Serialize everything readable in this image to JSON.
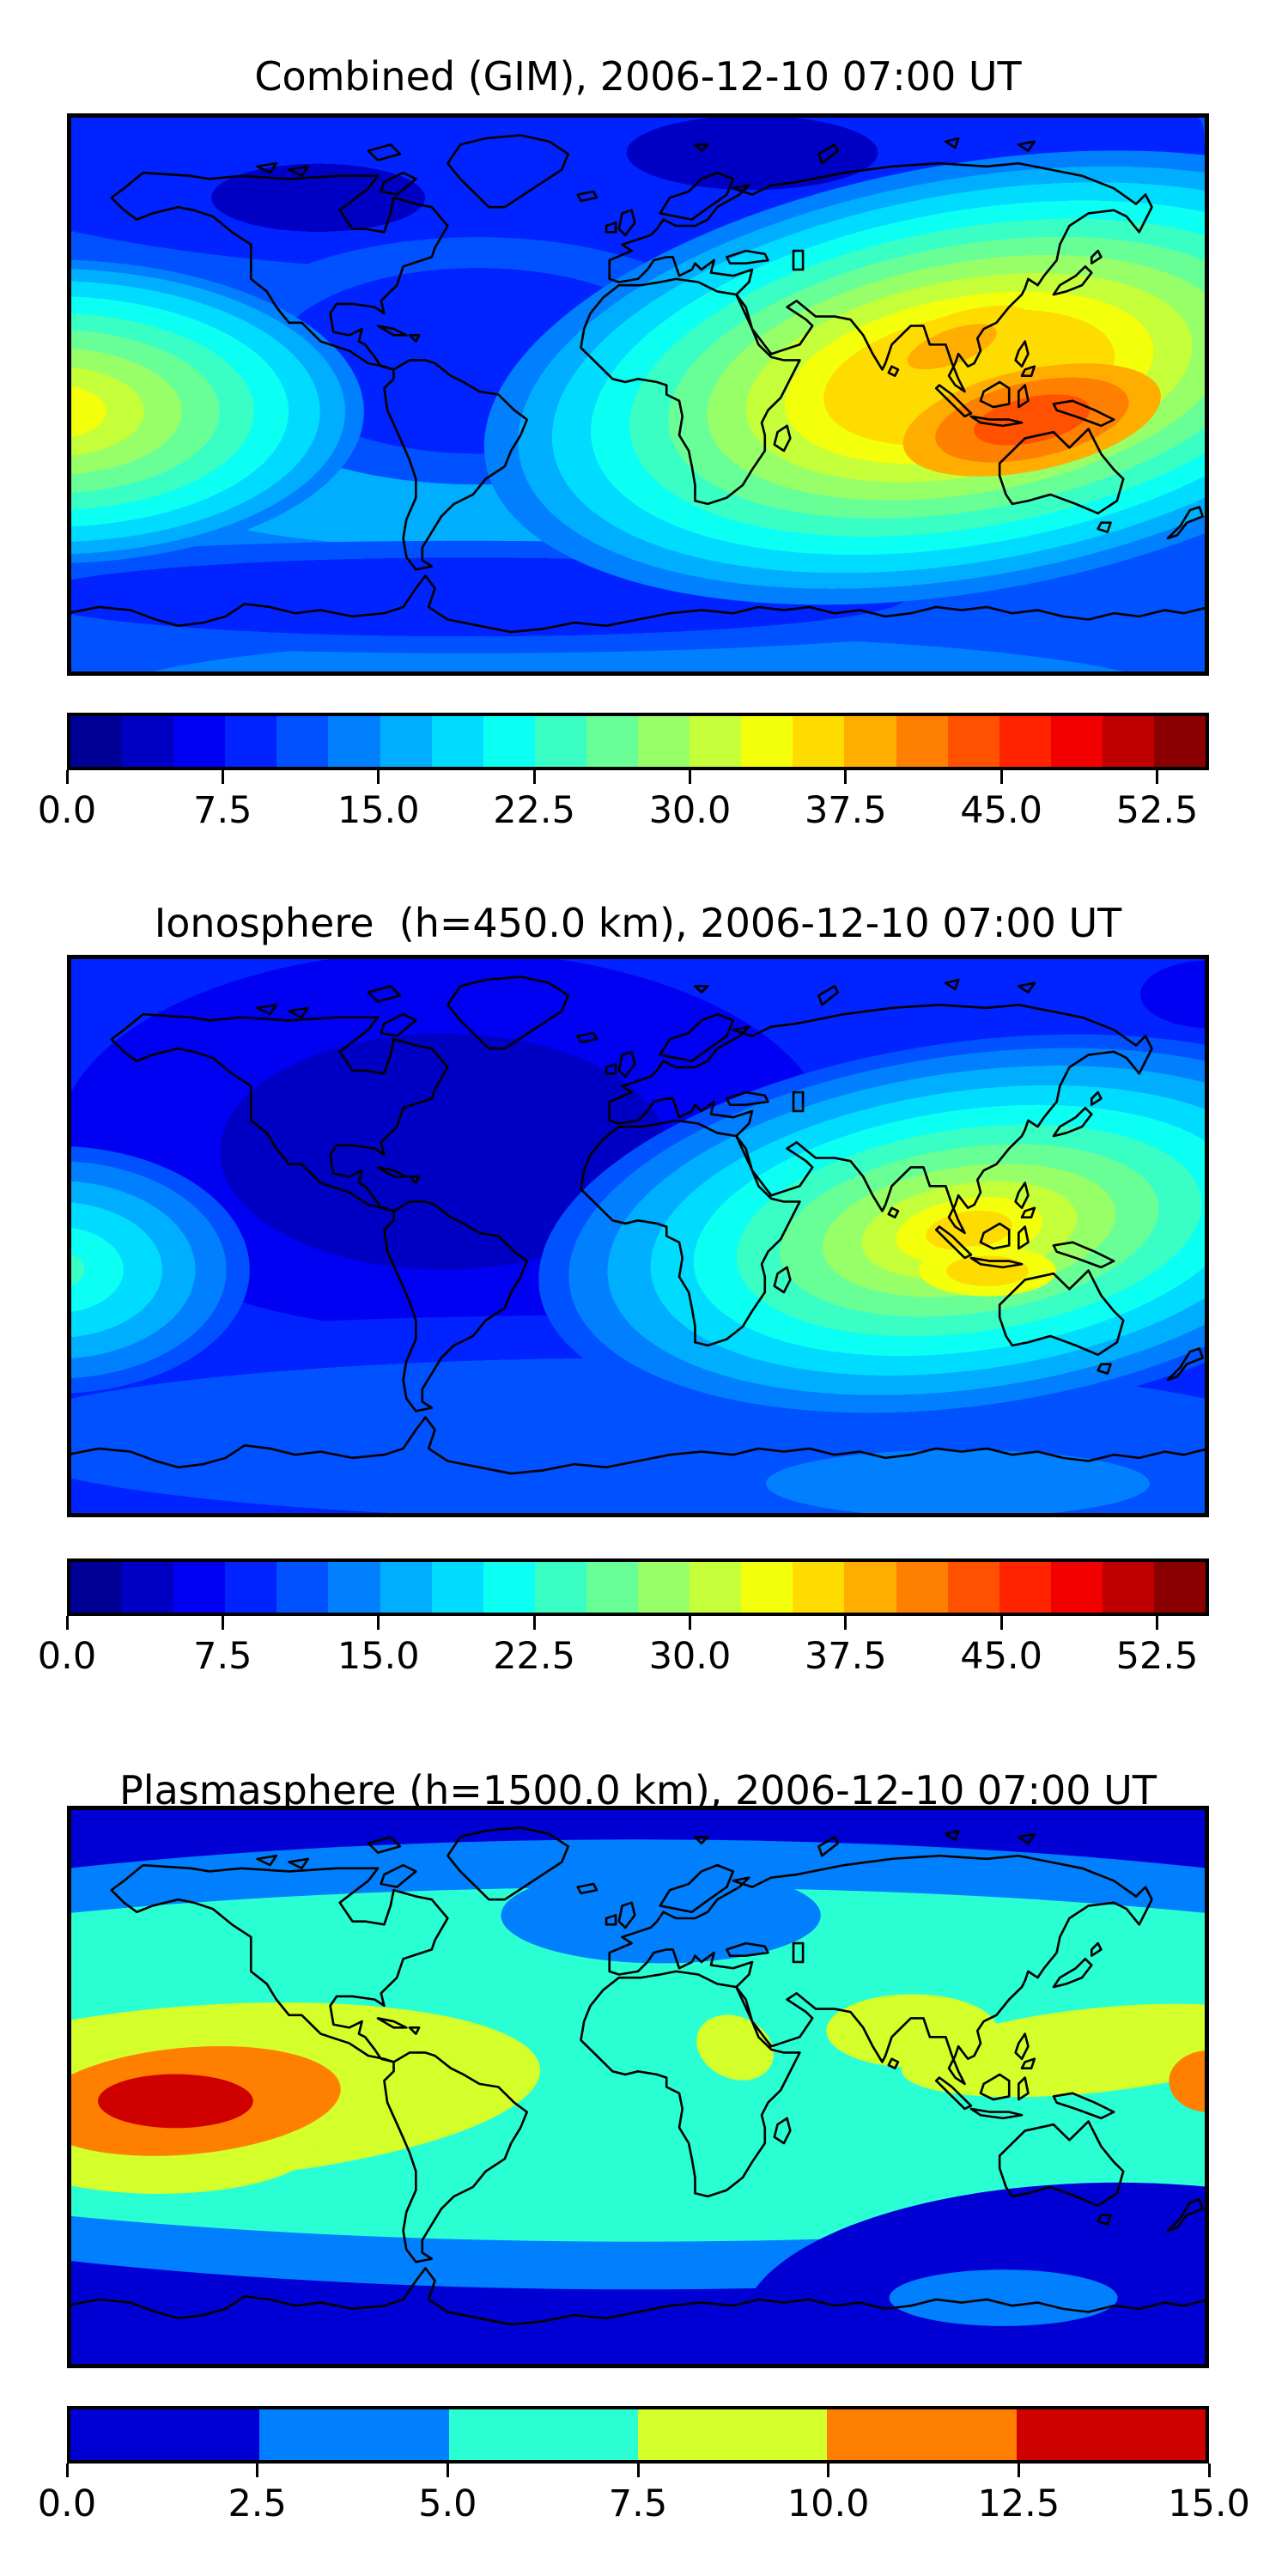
{
  "figure": {
    "background": "#ffffff",
    "description": "Three stacked global TEC contour maps (matplotlib-style) with discrete jet colorbars"
  },
  "chart_data": [
    {
      "type": "heatmap",
      "title": "Combined (GIM), 2006-12-10 07:00 UT",
      "projection": "equirectangular",
      "lon_range": [
        -180,
        180
      ],
      "lat_range": [
        -90,
        90
      ],
      "colormap": "jet-discrete",
      "vmin": 0,
      "vmax": 55,
      "level_step": 2.5,
      "colorbar": {
        "tick_labels": [
          "0.0",
          "7.5",
          "15.0",
          "22.5",
          "30.0",
          "37.5",
          "45.0",
          "52.5"
        ],
        "tick_values": [
          0,
          7.5,
          15,
          22.5,
          30,
          37.5,
          45,
          52.5
        ],
        "colors": [
          "#000096",
          "#0000C4",
          "#0000F3",
          "#0023FF",
          "#0051FF",
          "#0080FF",
          "#00AEFF",
          "#00DCFF",
          "#0BFFF3",
          "#3AFFC5",
          "#68FF97",
          "#97FF68",
          "#C5FF3A",
          "#F3FF0B",
          "#FFDC00",
          "#FFAE00",
          "#FF8000",
          "#FF5100",
          "#FF2300",
          "#F20000",
          "#BE0000",
          "#8A0000"
        ]
      },
      "features": [
        {
          "name": "equatorial-anomaly-peak",
          "lon": 122,
          "lat": -7,
          "approx_value": 45
        },
        {
          "name": "secondary-peak-near-dateline",
          "lon": -176,
          "lat": -5,
          "approx_value": 32.5
        },
        {
          "name": "north-polar-minimum",
          "lon": -100,
          "lat": 62,
          "approx_value": 2.5
        },
        {
          "name": "siberia-minimum",
          "lon": 36,
          "lat": 66,
          "approx_value": 2.5
        }
      ],
      "base": "#0051FF",
      "layers": [
        {
          "cx": 0.33,
          "cy": 0.68,
          "rx": 0.52,
          "ry": 0.2,
          "bands": [
            [
              0,
              0.45,
              "#00AEFF"
            ],
            [
              0.45,
              0.8,
              "#0080FF"
            ],
            [
              0.8,
              1,
              "#0051FF"
            ]
          ]
        },
        {
          "cx": 0.5,
          "cy": 1.05,
          "rx": 0.88,
          "ry": 0.22,
          "bands": [
            [
              0,
              0.55,
              "#0080FF"
            ],
            [
              0.55,
              1,
              "#0051FF"
            ]
          ]
        },
        {
          "cx": 0.35,
          "cy": 0.86,
          "rx": 0.55,
          "ry": 0.1,
          "bands": [
            [
              0,
              0.7,
              "#0023FF"
            ],
            [
              0.7,
              1,
              "#0051FF"
            ]
          ]
        },
        {
          "cx": 0.42,
          "cy": 0.04,
          "rx": 0.8,
          "ry": 0.34,
          "bands": [
            [
              0,
              0.72,
              "#0023FF"
            ],
            [
              0.72,
              1,
              "#0051FF"
            ]
          ]
        },
        {
          "cx": 0.22,
          "cy": 0.15,
          "rx": 0.17,
          "ry": 0.11,
          "bands": [
            [
              0,
              0.55,
              "#0000C4"
            ],
            [
              0.55,
              1,
              "#0023FF"
            ]
          ]
        },
        {
          "cx": 0.6,
          "cy": 0.07,
          "rx": 0.2,
          "ry": 0.12,
          "bands": [
            [
              0,
              0.55,
              "#0000C4"
            ],
            [
              0.55,
              1,
              "#0023FF"
            ]
          ]
        },
        {
          "cx": 0.985,
          "cy": 0.12,
          "rx": 0.06,
          "ry": 0.07,
          "bands": [
            [
              0,
              0.6,
              "#0000C4"
            ],
            [
              0.6,
              1,
              "#0023FF"
            ]
          ]
        },
        {
          "cx": 0.36,
          "cy": 0.44,
          "rx": 0.24,
          "ry": 0.22,
          "bands": [
            [
              0,
              0.75,
              "#0023FF"
            ],
            [
              0.75,
              1,
              "#0051FF"
            ]
          ]
        },
        {
          "cx": 0.79,
          "cy": 0.47,
          "rx": 0.43,
          "ry": 0.38,
          "rot": -10,
          "bands": [
            [
              0,
              0.3,
              "#FFDC00"
            ],
            [
              0.3,
              0.38,
              "#F3FF0B"
            ],
            [
              0.38,
              0.46,
              "#C5FF3A"
            ],
            [
              0.46,
              0.54,
              "#97FF68"
            ],
            [
              0.54,
              0.62,
              "#68FF97"
            ],
            [
              0.62,
              0.7,
              "#3AFFC5"
            ],
            [
              0.7,
              0.78,
              "#0BFFF3"
            ],
            [
              0.78,
              0.86,
              "#00DCFF"
            ],
            [
              0.86,
              0.93,
              "#00AEFF"
            ],
            [
              0.93,
              1,
              "#0080FF"
            ]
          ]
        },
        {
          "cx": 0.845,
          "cy": 0.545,
          "rx": 0.115,
          "ry": 0.09,
          "rot": -12,
          "bands": [
            [
              0,
              0.45,
              "#FF5100"
            ],
            [
              0.45,
              0.75,
              "#FF8000"
            ],
            [
              0.75,
              1,
              "#FFAE00"
            ]
          ]
        },
        {
          "cx": 0.775,
          "cy": 0.415,
          "rx": 0.075,
          "ry": 0.055,
          "rot": -20,
          "bands": [
            [
              0,
              0.55,
              "#FFAE00"
            ],
            [
              0.55,
              1,
              "#FFDC00"
            ]
          ]
        },
        {
          "cx": -0.015,
          "cy": 0.53,
          "rx": 0.275,
          "ry": 0.27,
          "bands": [
            [
              0,
              0.18,
              "#F3FF0B"
            ],
            [
              0.18,
              0.3,
              "#C5FF3A"
            ],
            [
              0.3,
              0.42,
              "#97FF68"
            ],
            [
              0.42,
              0.54,
              "#68FF97"
            ],
            [
              0.54,
              0.65,
              "#3AFFC5"
            ],
            [
              0.65,
              0.76,
              "#0BFFF3"
            ],
            [
              0.76,
              0.86,
              "#00DCFF"
            ],
            [
              0.86,
              0.94,
              "#00AEFF"
            ],
            [
              0.94,
              1,
              "#0080FF"
            ]
          ]
        }
      ]
    },
    {
      "type": "heatmap",
      "title": "Ionosphere  (h=450.0 km), 2006-12-10 07:00 UT",
      "projection": "equirectangular",
      "lon_range": [
        -180,
        180
      ],
      "lat_range": [
        -90,
        90
      ],
      "colormap": "jet-discrete",
      "vmin": 0,
      "vmax": 55,
      "level_step": 2.5,
      "colorbar": {
        "tick_labels": [
          "0.0",
          "7.5",
          "15.0",
          "22.5",
          "30.0",
          "37.5",
          "45.0",
          "52.5"
        ],
        "tick_values": [
          0,
          7.5,
          15,
          22.5,
          30,
          37.5,
          45,
          52.5
        ],
        "colors": [
          "#000096",
          "#0000C4",
          "#0000F3",
          "#0023FF",
          "#0051FF",
          "#0080FF",
          "#00AEFF",
          "#00DCFF",
          "#0BFFF3",
          "#3AFFC5",
          "#68FF97",
          "#97FF68",
          "#C5FF3A",
          "#F3FF0B",
          "#FFDC00",
          "#FFAE00",
          "#FF8000",
          "#FF5100",
          "#FF2300",
          "#F20000",
          "#BE0000",
          "#8A0000"
        ]
      },
      "features": [
        {
          "name": "equatorial-anomaly-peak",
          "lon": 112,
          "lat": -11,
          "approx_value": 36
        },
        {
          "name": "secondary-peak-near-dateline",
          "lon": -178,
          "lat": -10,
          "approx_value": 22.5
        },
        {
          "name": "americas-minimum",
          "lon": -60,
          "lat": 25,
          "approx_value": 3.5
        }
      ],
      "base": "#0023FF",
      "layers": [
        {
          "cx": 0.33,
          "cy": 0.33,
          "rx": 0.45,
          "ry": 0.45,
          "bands": [
            [
              0,
              0.75,
              "#0000F3"
            ],
            [
              0.75,
              1,
              "#0023FF"
            ]
          ]
        },
        {
          "cx": 0.33,
          "cy": 0.35,
          "rx": 0.28,
          "ry": 0.3,
          "bands": [
            [
              0,
              0.7,
              "#0000C4"
            ],
            [
              0.7,
              1,
              "#0000F3"
            ]
          ]
        },
        {
          "cx": 1.0,
          "cy": 0.07,
          "rx": 0.1,
          "ry": 0.1,
          "bands": [
            [
              0,
              0.6,
              "#0000F3"
            ],
            [
              0.6,
              1,
              "#0023FF"
            ]
          ]
        },
        {
          "cx": 0.5,
          "cy": 0.86,
          "rx": 0.88,
          "ry": 0.22,
          "bands": [
            [
              0,
              0.65,
              "#0051FF"
            ],
            [
              0.65,
              1,
              "#0023FF"
            ]
          ]
        },
        {
          "cx": 0.78,
          "cy": 0.94,
          "rx": 0.28,
          "ry": 0.1,
          "bands": [
            [
              0,
              0.6,
              "#0080FF"
            ],
            [
              0.6,
              1,
              "#0051FF"
            ]
          ]
        },
        {
          "cx": 0.79,
          "cy": 0.49,
          "rx": 0.38,
          "ry": 0.335,
          "rot": -8,
          "bands": [
            [
              0,
              0.1,
              "#FFDC00"
            ],
            [
              0.1,
              0.17,
              "#F3FF0B"
            ],
            [
              0.17,
              0.25,
              "#C5FF3A"
            ],
            [
              0.25,
              0.34,
              "#97FF68"
            ],
            [
              0.34,
              0.44,
              "#68FF97"
            ],
            [
              0.44,
              0.54,
              "#3AFFC5"
            ],
            [
              0.54,
              0.64,
              "#0BFFF3"
            ],
            [
              0.64,
              0.74,
              "#00DCFF"
            ],
            [
              0.74,
              0.84,
              "#00AEFF"
            ],
            [
              0.84,
              0.93,
              "#0080FF"
            ],
            [
              0.93,
              1,
              "#0051FF"
            ]
          ]
        },
        {
          "cx": 0.806,
          "cy": 0.562,
          "rx": 0.06,
          "ry": 0.045,
          "bands": [
            [
              0,
              0.6,
              "#FFDC00"
            ],
            [
              0.6,
              1,
              "#F3FF0B"
            ]
          ]
        },
        {
          "cx": -0.01,
          "cy": 0.56,
          "rx": 0.17,
          "ry": 0.22,
          "bands": [
            [
              0,
              0.15,
              "#3AFFC5"
            ],
            [
              0.15,
              0.35,
              "#0BFFF3"
            ],
            [
              0.35,
              0.55,
              "#00DCFF"
            ],
            [
              0.55,
              0.72,
              "#00AEFF"
            ],
            [
              0.72,
              0.88,
              "#0080FF"
            ],
            [
              0.88,
              1,
              "#0051FF"
            ]
          ]
        }
      ]
    },
    {
      "type": "heatmap",
      "title": "Plasmasphere (h=1500.0 km), 2006-12-10 07:00 UT",
      "projection": "equirectangular",
      "lon_range": [
        -180,
        180
      ],
      "lat_range": [
        -90,
        90
      ],
      "colormap": "jet-discrete",
      "vmin": 0,
      "vmax": 15,
      "level_step": 2.5,
      "colorbar": {
        "tick_labels": [
          "0.0",
          "2.5",
          "5.0",
          "7.5",
          "10.0",
          "12.5",
          "15.0"
        ],
        "tick_values": [
          0,
          2.5,
          5,
          7.5,
          10,
          12.5,
          15
        ],
        "colors": [
          "#0000D4",
          "#0080FF",
          "#2AFFD4",
          "#D4FF2A",
          "#FF8000",
          "#CF0000"
        ]
      },
      "features": [
        {
          "name": "pacific-peak",
          "lon": -146,
          "lat": -4,
          "approx_value": 13.5
        },
        {
          "name": "dateline-east-secondary",
          "lon": 180,
          "lat": 0,
          "approx_value": 11
        },
        {
          "name": "india-local-maximum",
          "lon": 78,
          "lat": 14,
          "approx_value": 8.5
        },
        {
          "name": "polar-minimum",
          "lon": 0,
          "lat": 75,
          "approx_value": 1
        }
      ],
      "base": "#0000D4",
      "layers": [
        {
          "cx": 0.5,
          "cy": 0.46,
          "rx": 1.02,
          "ry": 0.4,
          "color": "#0080FF"
        },
        {
          "cx": 0.5,
          "cy": 0.46,
          "rx": 0.96,
          "ry": 0.315,
          "color": "#2AFFD4"
        },
        {
          "cx": 0.52,
          "cy": 0.195,
          "rx": 0.14,
          "ry": 0.085,
          "color": "#0080FF"
        },
        {
          "cx": 0.92,
          "cy": 0.93,
          "rx": 0.33,
          "ry": 0.26,
          "color": "#0000D4"
        },
        {
          "cx": 0.82,
          "cy": 0.875,
          "rx": 0.1,
          "ry": 0.05,
          "color": "#0080FF"
        },
        {
          "cx": 0.115,
          "cy": 0.51,
          "rx": 0.3,
          "ry": 0.155,
          "rot": -4,
          "color": "#D4FF2A"
        },
        {
          "cx": 0.08,
          "cy": 0.6,
          "rx": 0.14,
          "ry": 0.09,
          "color": "#D4FF2A"
        },
        {
          "cx": 0.74,
          "cy": 0.4,
          "rx": 0.075,
          "ry": 0.065,
          "color": "#D4FF2A"
        },
        {
          "cx": 0.9,
          "cy": 0.435,
          "rx": 0.17,
          "ry": 0.075,
          "rot": -6,
          "color": "#D4FF2A"
        },
        {
          "cx": 0.585,
          "cy": 0.43,
          "rx": 0.035,
          "ry": 0.055,
          "rot": 25,
          "color": "#D4FF2A"
        },
        {
          "cx": 0.105,
          "cy": 0.525,
          "rx": 0.135,
          "ry": 0.095,
          "rot": -5,
          "color": "#FF8000"
        },
        {
          "cx": 1.0,
          "cy": 0.49,
          "rx": 0.035,
          "ry": 0.055,
          "color": "#FF8000"
        },
        {
          "cx": 0.095,
          "cy": 0.525,
          "rx": 0.068,
          "ry": 0.048,
          "color": "#CF0000"
        }
      ]
    }
  ]
}
